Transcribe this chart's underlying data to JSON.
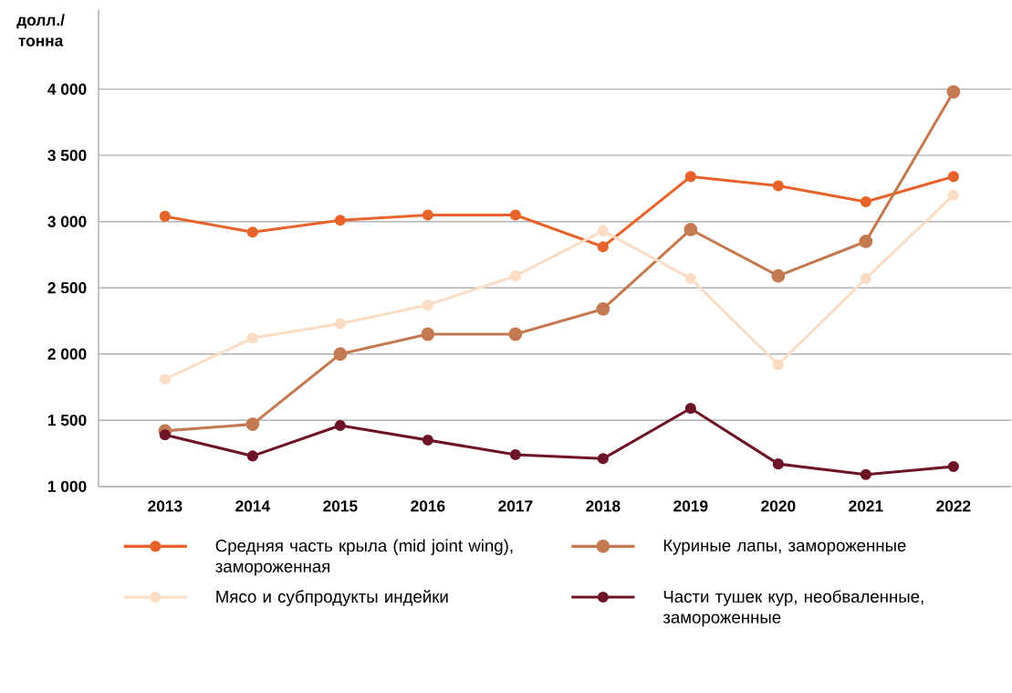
{
  "chart_data": {
    "type": "line",
    "ylabel": "долл./ тонна",
    "categories": [
      "2013",
      "2014",
      "2015",
      "2016",
      "2017",
      "2018",
      "2019",
      "2020",
      "2021",
      "2022"
    ],
    "ylim": [
      1000,
      4600
    ],
    "yticks": [
      {
        "value": 1000,
        "label": "1 000"
      },
      {
        "value": 1500,
        "label": "1 500"
      },
      {
        "value": 2000,
        "label": "2 000"
      },
      {
        "value": 2500,
        "label": "2 500"
      },
      {
        "value": 3000,
        "label": "3 000"
      },
      {
        "value": 3500,
        "label": "3 500"
      },
      {
        "value": 4000,
        "label": "4 000"
      }
    ],
    "grid": "y",
    "legend": "bottom",
    "marker": "circle",
    "line_style": "solid",
    "series": [
      {
        "name": "Средняя часть крыла (mid joint wing), замороженная",
        "color": "#e8632b",
        "values": [
          3040,
          2920,
          3010,
          3050,
          3050,
          2810,
          3340,
          3270,
          3150,
          3340
        ]
      },
      {
        "name": "Куриные лапы, замороженные",
        "color": "#c47a50",
        "values": [
          1420,
          1470,
          2000,
          2150,
          2150,
          2340,
          2940,
          2590,
          2850,
          3980
        ]
      },
      {
        "name": "Мясо и субпродукты индейки",
        "color": "#fbdcc4",
        "values": [
          1810,
          2120,
          2230,
          2370,
          2590,
          2930,
          2570,
          1920,
          2570,
          3200
        ]
      },
      {
        "name": "Части тушек кур, необваленные, замороженные",
        "color": "#6e1427",
        "values": [
          1390,
          1230,
          1460,
          1350,
          1240,
          1210,
          1590,
          1170,
          1090,
          1150
        ]
      }
    ]
  }
}
